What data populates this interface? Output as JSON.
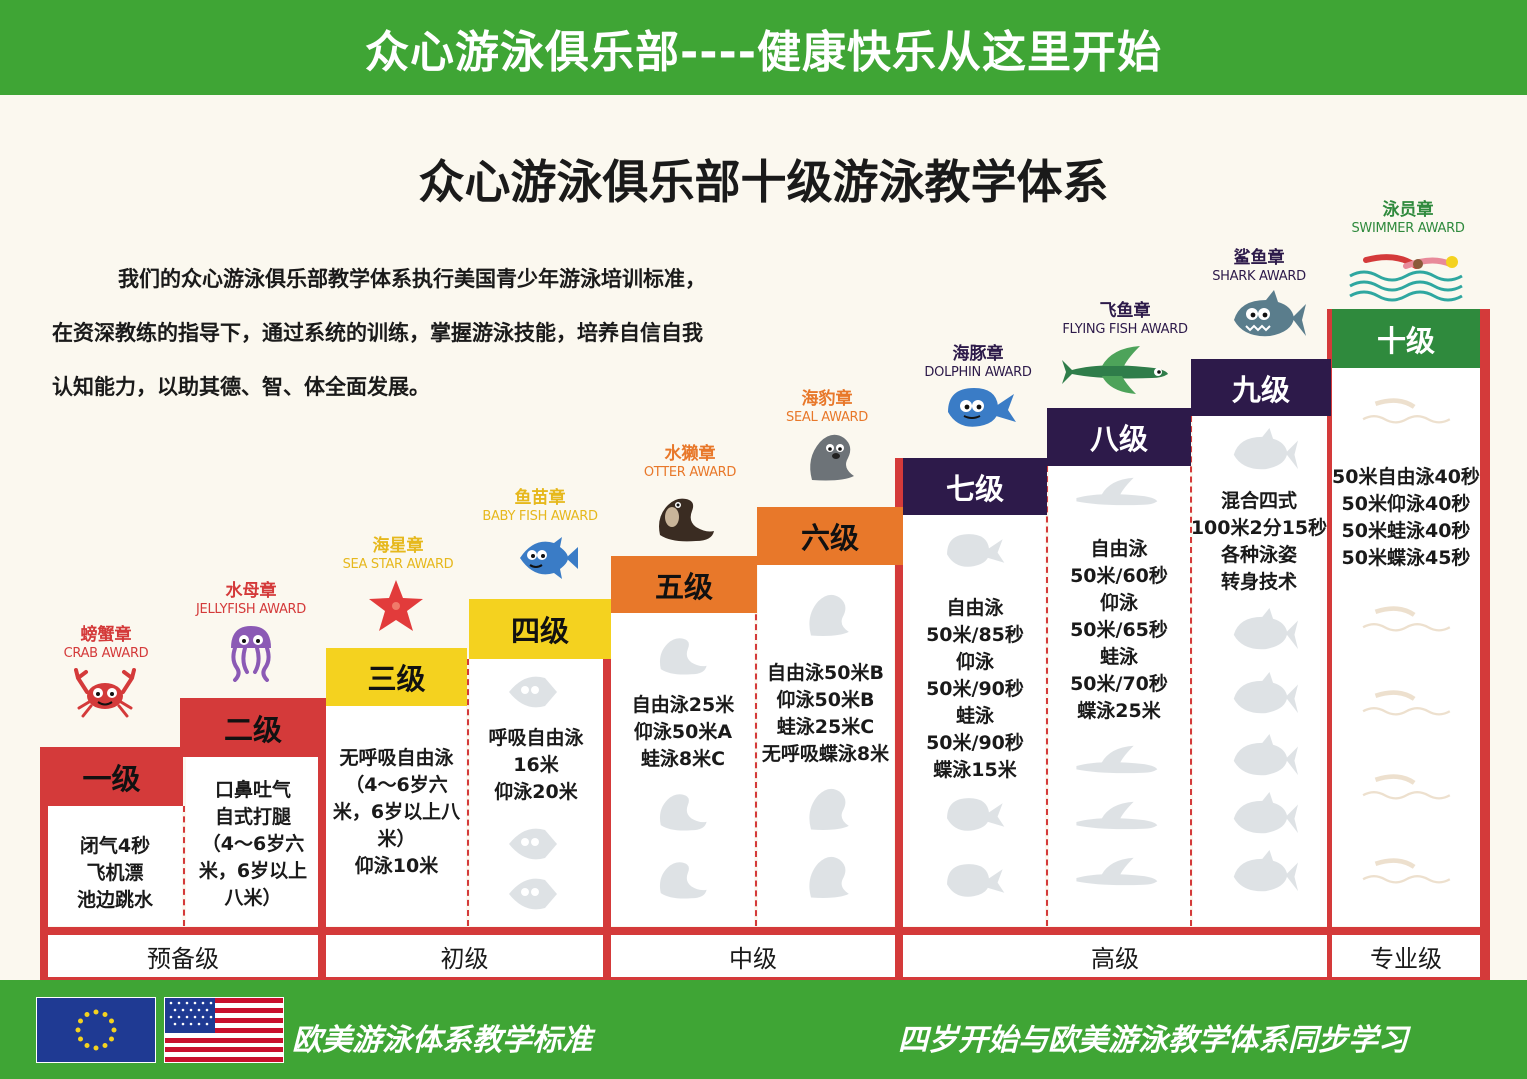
{
  "header": {
    "banner": "众心游泳俱乐部----健康快乐从这里开始"
  },
  "title": "众心游泳俱乐部十级游泳教学体系",
  "intro": {
    "line1": "我们的众心游泳俱乐部教学体系执行美国青少年游泳培训标准，",
    "line2": "在资深教练的指导下，通过系统的训练，掌握游泳技能，培养自信自我",
    "line3": "认知能力，以助其德、智、体全面发展。"
  },
  "colors": {
    "green": "#3fa535",
    "red": "#d43a3a",
    "yellow": "#f4d21f",
    "orange": "#e8782a",
    "purple": "#2d1a4a",
    "darkgreen": "#2f8a3d"
  },
  "levels": [
    {
      "label": "一级",
      "award_zh": "螃蟹章",
      "award_en": "CRAB AWARD",
      "award_color": "#d43a3a",
      "icon": "crab-icon",
      "req": [
        "闭气4秒",
        "飞机漂",
        "池边跳水"
      ]
    },
    {
      "label": "二级",
      "award_zh": "水母章",
      "award_en": "JELLYFISH AWARD",
      "award_color": "#d43a3a",
      "icon": "jellyfish-icon",
      "req": [
        "口鼻吐气",
        "自式打腿",
        "（4～6岁六",
        "米，6岁以上",
        "八米）"
      ]
    },
    {
      "label": "三级",
      "award_zh": "海星章",
      "award_en": "SEA STAR AWARD",
      "award_color": "#e6b81d",
      "icon": "starfish-icon",
      "req": [
        "无呼吸自由泳",
        "（4～6岁六",
        "米，6岁以上八",
        "米）",
        "仰泳10米"
      ]
    },
    {
      "label": "四级",
      "award_zh": "鱼苗章",
      "award_en": "BABY FISH AWARD",
      "award_color": "#e6b81d",
      "icon": "fish-icon",
      "req": [
        "呼吸自由泳",
        "16米",
        "仰泳20米"
      ]
    },
    {
      "label": "五级",
      "award_zh": "水獭章",
      "award_en": "OTTER AWARD",
      "award_color": "#e8782a",
      "icon": "otter-icon",
      "req": [
        "自由泳25米",
        "仰泳50米A",
        "蛙泳8米C"
      ]
    },
    {
      "label": "六级",
      "award_zh": "海豹章",
      "award_en": "SEAL AWARD",
      "award_color": "#e8782a",
      "icon": "seal-icon",
      "req": [
        "自由泳50米B",
        "仰泳50米B",
        "蛙泳25米C",
        "无呼吸蝶泳8米"
      ]
    },
    {
      "label": "七级",
      "award_zh": "海豚章",
      "award_en": "DOLPHIN AWARD",
      "award_color": "#2d1a4a",
      "icon": "dolphin-icon",
      "req": [
        "自由泳",
        "50米/85秒",
        "仰泳",
        "50米/90秒",
        "蛙泳",
        "50米/90秒",
        "蝶泳15米"
      ]
    },
    {
      "label": "八级",
      "award_zh": "飞鱼章",
      "award_en": "FLYING FISH AWARD",
      "award_color": "#2d1a4a",
      "icon": "flying-fish-icon",
      "req": [
        "自由泳",
        "50米/60秒",
        "仰泳",
        "50米/65秒",
        "蛙泳",
        "50米/70秒",
        "蝶泳25米"
      ]
    },
    {
      "label": "九级",
      "award_zh": "鲨鱼章",
      "award_en": "SHARK AWARD",
      "award_color": "#2d1a4a",
      "icon": "shark-icon",
      "req": [
        "混合四式",
        "100米2分15秒",
        "各种泳姿",
        "转身技术"
      ]
    },
    {
      "label": "十级",
      "award_zh": "泳员章",
      "award_en": "SWIMMER AWARD",
      "award_color": "#2f8a3d",
      "icon": "swimmer-icon",
      "req": [
        "50米自由泳40秒",
        "50米仰泳40秒",
        "50米蛙泳40秒",
        "50米蝶泳45秒"
      ]
    }
  ],
  "categories": [
    "预备级",
    "初级",
    "中级",
    "高级",
    "专业级"
  ],
  "footer": {
    "left": "欧美游泳体系教学标准",
    "right": "四岁开始与欧美游泳教学体系同步学习",
    "flags": [
      "eu-flag-icon",
      "us-flag-icon"
    ]
  }
}
